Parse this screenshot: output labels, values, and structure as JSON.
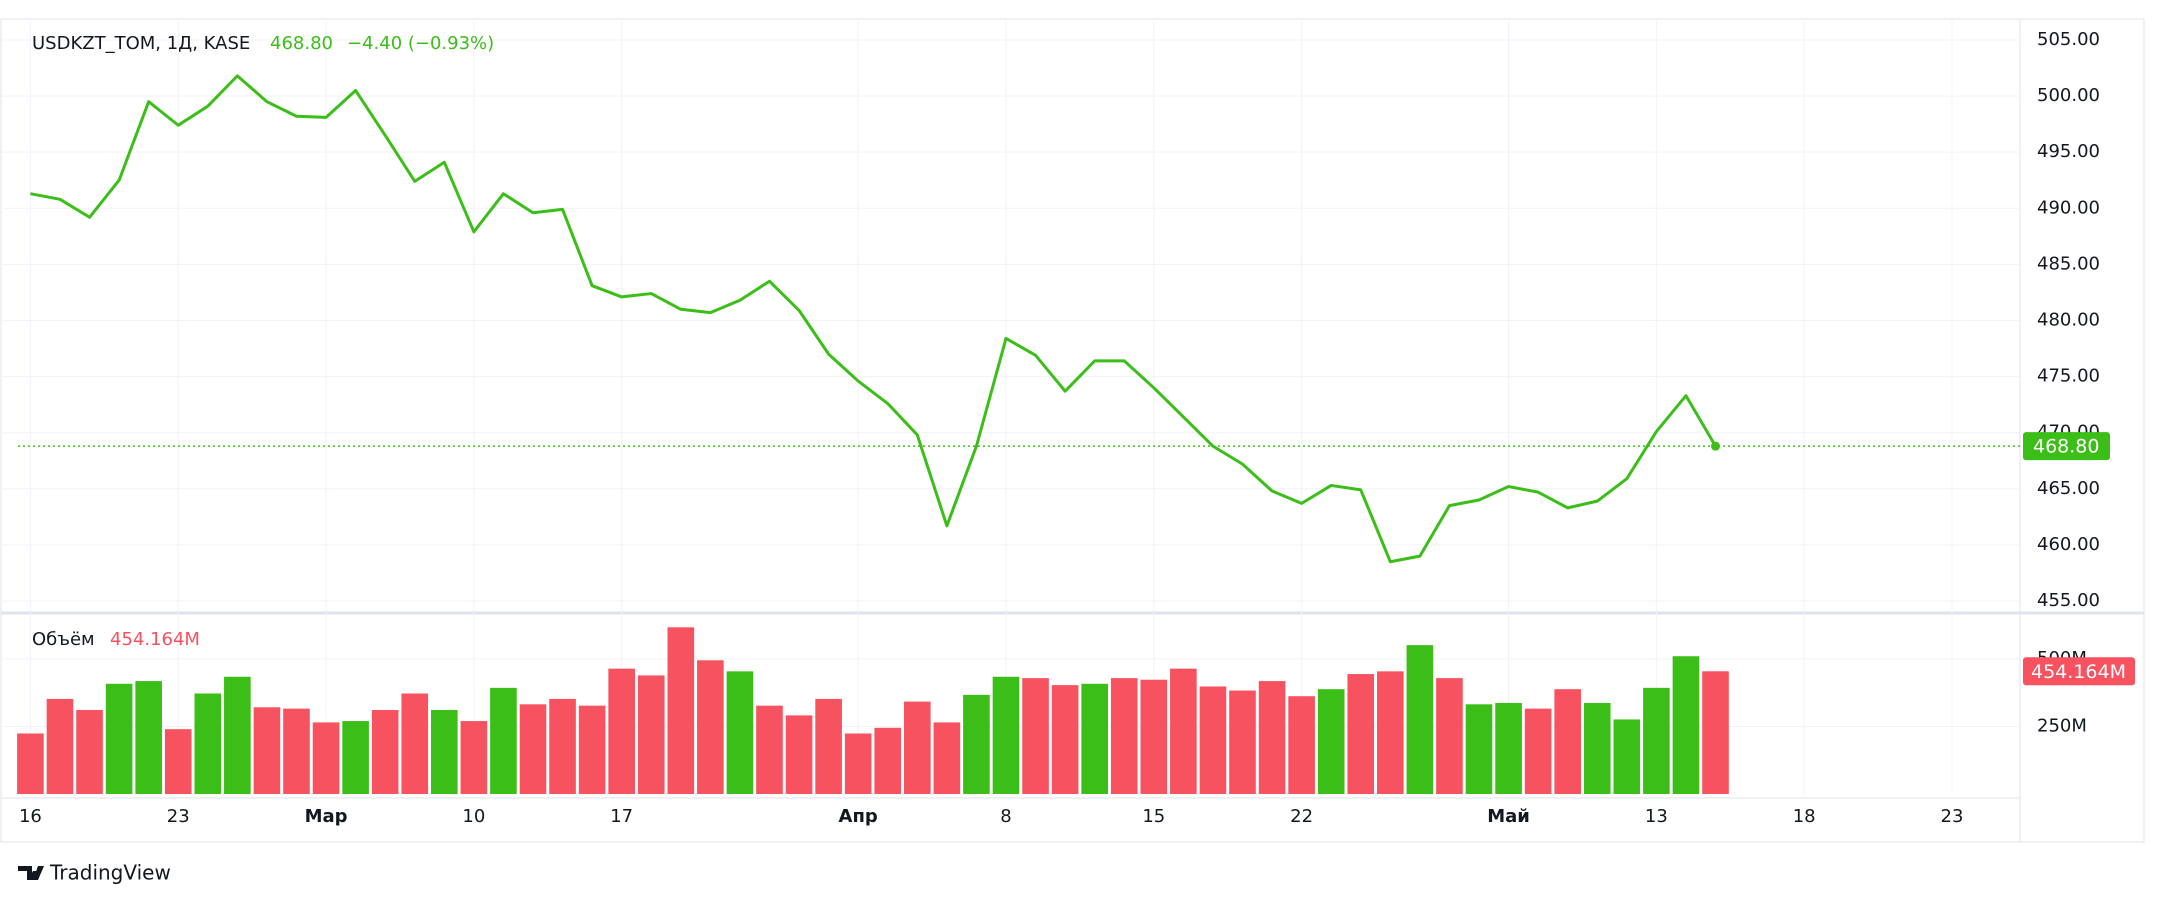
{
  "chart_data": [
    {
      "type": "line",
      "title": "USDKZT_TOM, 1Д, KASE",
      "last_label": "468.80",
      "change_label": "−4.40 (−0.93%)",
      "color": "#3cbe18",
      "grid": true,
      "values": [
        491.3,
        490.8,
        489.2,
        492.5,
        499.5,
        497.4,
        499.1,
        501.8,
        499.5,
        498.2,
        498.1,
        500.5,
        496.5,
        492.4,
        494.1,
        487.9,
        491.3,
        489.6,
        489.9,
        483.1,
        482.1,
        482.4,
        481.0,
        480.7,
        481.8,
        483.5,
        480.9,
        477.0,
        474.6,
        472.6,
        469.8,
        461.7,
        468.8,
        478.4,
        476.9,
        473.7,
        476.4,
        476.4,
        474.0,
        471.4,
        468.8,
        467.2,
        464.8,
        463.7,
        465.3,
        464.9,
        458.5,
        459.0,
        463.5,
        464.0,
        465.2,
        464.7,
        463.3,
        463.9,
        465.9,
        470.1,
        473.3,
        468.8
      ],
      "xlim": [
        -0.42,
        67.3
      ],
      "ylim": [
        453.93,
        506.87
      ],
      "yticks": [
        {
          "value": 455,
          "label": "455.00"
        },
        {
          "value": 460,
          "label": "460.00"
        },
        {
          "value": 465,
          "label": "465.00"
        },
        {
          "value": 470,
          "label": "470.00"
        },
        {
          "value": 475,
          "label": "475.00"
        },
        {
          "value": 480,
          "label": "480.00"
        },
        {
          "value": 485,
          "label": "485.00"
        },
        {
          "value": 490,
          "label": "490.00"
        },
        {
          "value": 495,
          "label": "495.00"
        },
        {
          "value": 500,
          "label": "500.00"
        },
        {
          "value": 505,
          "label": "505.00"
        }
      ]
    },
    {
      "type": "bar",
      "title": "Объём",
      "last_value_label": "454.164M",
      "grid": true,
      "values": [
        224,
        352,
        311,
        408,
        418,
        240,
        372,
        434,
        321,
        316,
        265,
        270,
        311,
        372,
        311,
        270,
        393,
        332,
        352,
        327,
        464,
        439,
        617,
        495,
        454,
        327,
        291,
        352,
        224,
        245,
        342,
        265,
        367,
        434,
        429,
        403,
        408,
        429,
        423,
        464,
        398,
        383,
        418,
        362,
        388,
        444,
        454,
        551,
        429,
        332,
        337,
        316,
        388,
        337,
        276,
        393,
        510,
        454.164
      ],
      "colors": [
        "#f7525f",
        "#f7525f",
        "#f7525f",
        "#3cbe18",
        "#3cbe18",
        "#f7525f",
        "#3cbe18",
        "#3cbe18",
        "#f7525f",
        "#f7525f",
        "#f7525f",
        "#3cbe18",
        "#f7525f",
        "#f7525f",
        "#3cbe18",
        "#f7525f",
        "#3cbe18",
        "#f7525f",
        "#f7525f",
        "#f7525f",
        "#f7525f",
        "#f7525f",
        "#f7525f",
        "#f7525f",
        "#3cbe18",
        "#f7525f",
        "#f7525f",
        "#f7525f",
        "#f7525f",
        "#f7525f",
        "#f7525f",
        "#f7525f",
        "#3cbe18",
        "#3cbe18",
        "#f7525f",
        "#f7525f",
        "#3cbe18",
        "#f7525f",
        "#f7525f",
        "#f7525f",
        "#f7525f",
        "#f7525f",
        "#f7525f",
        "#f7525f",
        "#3cbe18",
        "#f7525f",
        "#f7525f",
        "#3cbe18",
        "#f7525f",
        "#3cbe18",
        "#3cbe18",
        "#f7525f",
        "#f7525f",
        "#3cbe18",
        "#3cbe18",
        "#3cbe18",
        "#3cbe18",
        "#f7525f"
      ],
      "xlim": [
        -0.42,
        67.3
      ],
      "ylim": [
        0,
        670
      ],
      "yticks": [
        {
          "value": 250,
          "label": "250M"
        },
        {
          "value": 500,
          "label": "500M"
        }
      ],
      "xticks": [
        {
          "value": 0,
          "label": "16"
        },
        {
          "value": 5,
          "label": "23"
        },
        {
          "value": 10,
          "label": "Мар"
        },
        {
          "value": 15,
          "label": "10"
        },
        {
          "value": 20,
          "label": "17"
        },
        {
          "value": 28,
          "label": "Апр"
        },
        {
          "value": 33,
          "label": "8"
        },
        {
          "value": 38,
          "label": "15"
        },
        {
          "value": 43,
          "label": "22"
        },
        {
          "value": 50,
          "label": "Май"
        },
        {
          "value": 55,
          "label": "13"
        },
        {
          "value": 60,
          "label": "18"
        },
        {
          "value": 65,
          "label": "23"
        }
      ]
    }
  ],
  "brand": "TradingView"
}
